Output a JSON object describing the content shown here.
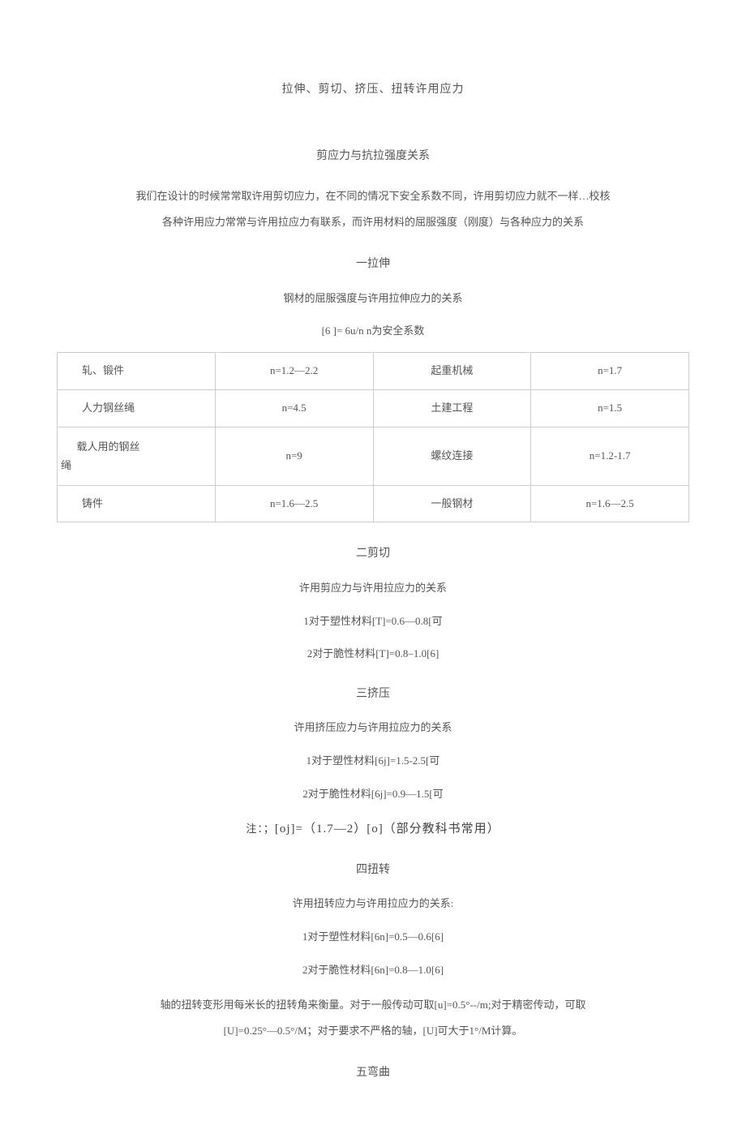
{
  "main_title": "拉伸、剪切、挤压、扭转许用应力",
  "sub_title": "剪应力与抗拉强度关系",
  "intro_line1": "我们在设计的时候常常取许用剪切应力，在不同的情况下安全系数不同，许用剪切应力就不一样…校核",
  "intro_line2": "各种许用应力常常与许用拉应力有联系，而许用材料的屈服强度（刚度）与各种应力的关系",
  "section1": {
    "title": "一拉伸",
    "relation": "钢材的屈服强度与许用拉伸应力的关系",
    "formula": "[6 ]= 6u/n n为安全系数",
    "table": {
      "rows": [
        {
          "c1": "轧、锻件",
          "c2": "n=1.2—2.2",
          "c3": "起重机械",
          "c4": "n=1.7"
        },
        {
          "c1": "人力钢丝绳",
          "c2": "n=4.5",
          "c3": "土建工程",
          "c4": "n=1.5"
        },
        {
          "c1": "载人用的钢丝绳",
          "c2": "n=9",
          "c3": "螺纹连接",
          "c4": "n=1.2-1.7"
        },
        {
          "c1": "铸件",
          "c2": "n=1.6—2.5",
          "c3": "一般钢材",
          "c4": "n=1.6—2.5"
        }
      ]
    }
  },
  "section2": {
    "title": "二剪切",
    "relation": "许用剪应力与许用拉应力的关系",
    "line1": "1对于塑性材料[T]=0.6—0.8[可",
    "line2": "2对于脆性材料[T]=0.8–1.0[6]"
  },
  "section3": {
    "title": "三挤压",
    "relation": "许用挤压应力与许用拉应力的关系",
    "line1": "1对于塑性材料[6j]=1.5-2.5[可",
    "line2": "2对于脆性材料[6j]=0.9—1.5[可",
    "note_prefix": "注：；",
    "note_main": "[oj]=（1.7—2）[o]（部分教科书常用）"
  },
  "section4": {
    "title": "四扭转",
    "relation": "许用扭转应力与许用拉应力的关系:",
    "line1": "1对于塑性材料[6n]=0.5—0.6[6]",
    "line2": "2对于脆性材料[6n]=0.8—1.0[6]",
    "para1": "轴的扭转变形用每米长的扭转角来衡量。对于一般传动可取[u]=0.5°--/m;对于精密传动，可取",
    "para2": "[U]=0.25°—0.5°/M；对于要求不严格的轴，[U]可大于1°/M计算。"
  },
  "section5": {
    "title": "五弯曲"
  }
}
